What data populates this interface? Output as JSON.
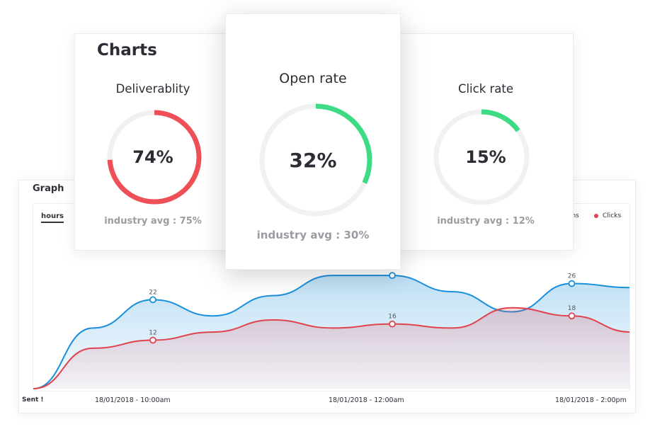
{
  "charts_title": "Charts",
  "gauges": [
    {
      "label": "Deliverablity",
      "value_text": "74%",
      "fraction": 0.74,
      "color": "#ef5057",
      "track": "#f1f1f1",
      "avg_text": "industry avg : 75%"
    },
    {
      "label": "Open rate",
      "value_text": "32%",
      "fraction": 0.32,
      "color": "#3ddc84",
      "track": "#f1f1f1",
      "avg_text": "industry avg : 30%"
    },
    {
      "label": "Click rate",
      "value_text": "15%",
      "fraction": 0.15,
      "color": "#3ddc84",
      "track": "#f1f1f1",
      "avg_text": "industry avg : 12%"
    }
  ],
  "graph": {
    "title": "Graph",
    "tab_label": "hours",
    "sent_label": "Sent !",
    "legend": [
      {
        "name": "Opens",
        "color": "#1a8fdc"
      },
      {
        "name": "Clicks",
        "color": "#e0434e"
      }
    ],
    "x_ticks": [
      "18/01/2018 - 10:00am",
      "18/01/2018 - 12:00am",
      "18/01/2018 - 2:00pm"
    ]
  },
  "chart_data": {
    "type": "area",
    "title": "Graph",
    "x": [
      "Sent !",
      "",
      "18/01/2018 - 10:00am",
      "",
      "",
      "",
      "18/01/2018 - 12:00am",
      "",
      "",
      "18/01/2018 - 2:00pm",
      ""
    ],
    "series": [
      {
        "name": "Opens",
        "color": "#1a8fdc",
        "values": [
          0,
          15,
          22,
          18,
          23,
          28,
          28,
          24,
          19,
          26,
          25
        ],
        "labeled": {
          "2": "22",
          "6": "28",
          "9": "26"
        }
      },
      {
        "name": "Clicks",
        "color": "#e0434e",
        "values": [
          0,
          10,
          12,
          14,
          17,
          15,
          16,
          15,
          20,
          18,
          14
        ],
        "labeled": {
          "2": "12",
          "6": "16",
          "9": "18"
        }
      }
    ],
    "ylim": [
      0,
      31
    ]
  }
}
